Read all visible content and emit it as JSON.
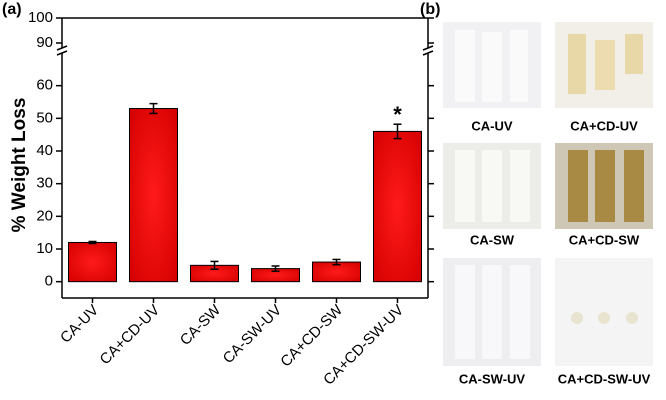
{
  "chart_data": {
    "type": "bar",
    "panel_label": "(a)",
    "ylabel": "% Weight Loss",
    "categories": [
      "CA-UV",
      "CA+CD-UV",
      "CA-SW",
      "CA-SW-UV",
      "CA+CD-SW",
      "CA+CD-SW-UV"
    ],
    "values": [
      12,
      53,
      5,
      4,
      6,
      46
    ],
    "errors": [
      0.3,
      1.5,
      1.2,
      0.8,
      0.8,
      2.2
    ],
    "color": "#ee0000",
    "ylim": [
      -5,
      100
    ],
    "axis_break": [
      70,
      88
    ],
    "yticks": [
      0,
      10,
      20,
      30,
      40,
      50,
      60,
      90,
      100
    ],
    "annotations": [
      {
        "text": "*",
        "category": 5
      }
    ]
  },
  "panel_b": {
    "label": "(b)",
    "images": [
      {
        "caption": "CA-UV"
      },
      {
        "caption": "CA+CD-UV"
      },
      {
        "caption": "CA-SW"
      },
      {
        "caption": "CA+CD-SW"
      },
      {
        "caption": "CA-SW-UV"
      },
      {
        "caption": "CA+CD-SW-UV"
      }
    ]
  }
}
